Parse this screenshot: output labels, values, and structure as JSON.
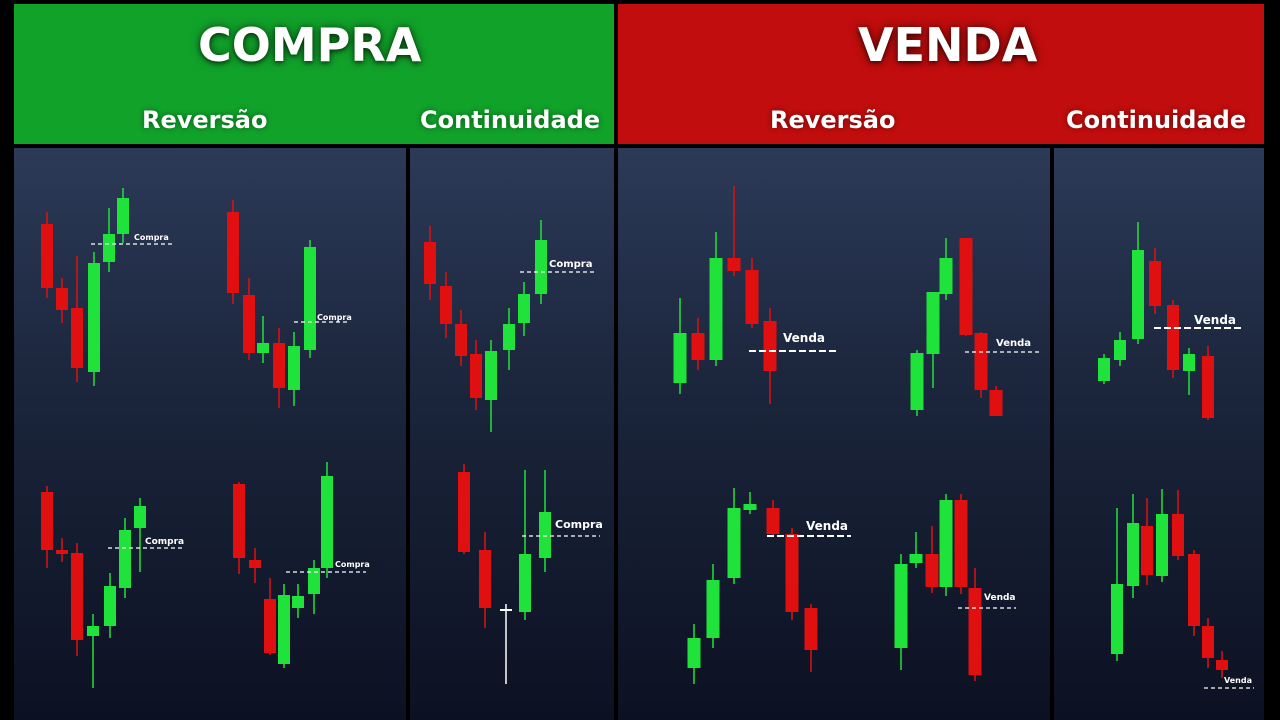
{
  "colors": {
    "buy_header": "#11a22a",
    "sell_header": "#c10d0d",
    "bull": "#1fe23a",
    "bear": "#e01010",
    "panel_top": "#2c3a58",
    "panel_bottom": "#0c1122"
  },
  "buy": {
    "title": "COMPRA",
    "reversal": "Reversão",
    "continuity": "Continuidade"
  },
  "sell": {
    "title": "VENDA",
    "reversal": "Reversão",
    "continuity": "Continuidade"
  },
  "entry": {
    "buy": "Compra",
    "sell": "Venda"
  }
}
